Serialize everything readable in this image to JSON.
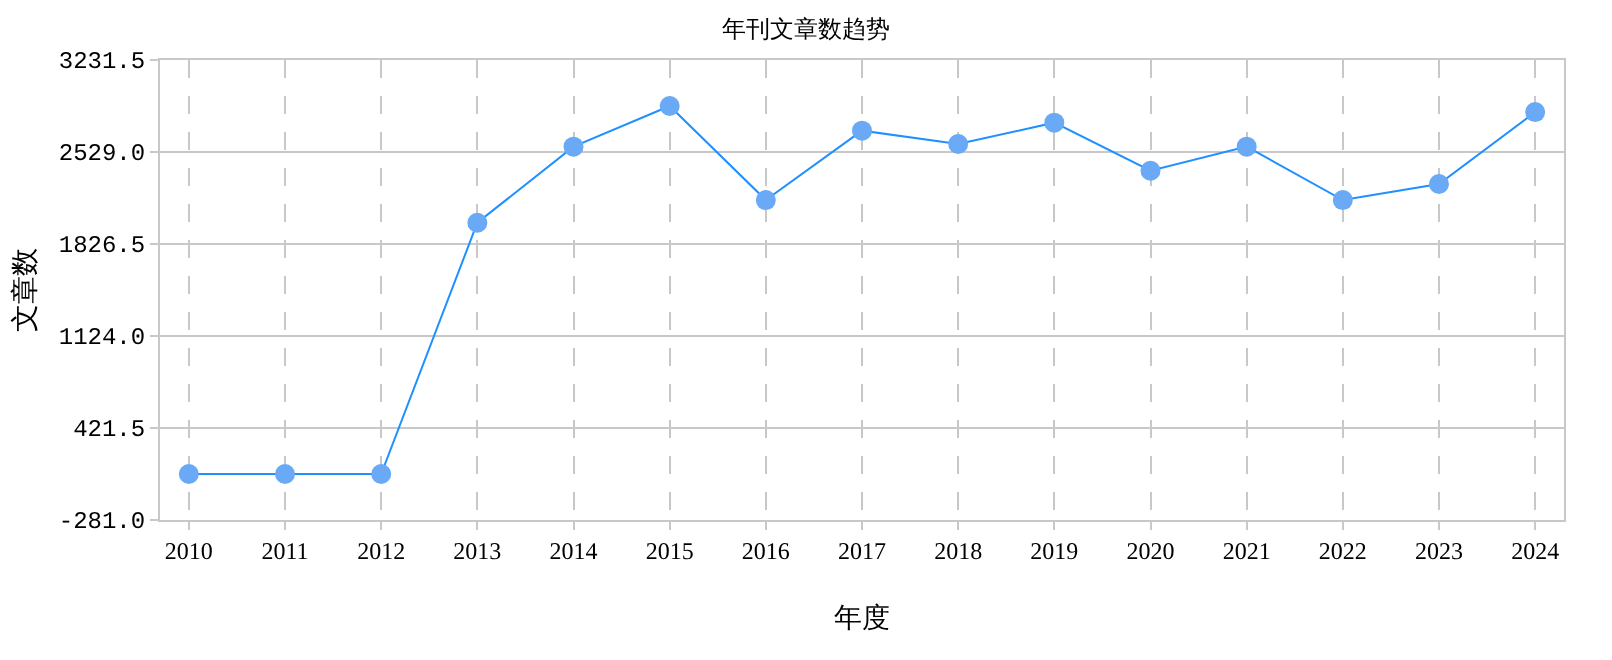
{
  "chart_data": {
    "type": "line",
    "title": "年刊文章数趋势",
    "xlabel": "年度",
    "ylabel": "文章数",
    "categories": [
      "2010",
      "2011",
      "2012",
      "2013",
      "2014",
      "2015",
      "2016",
      "2017",
      "2018",
      "2019",
      "2020",
      "2021",
      "2022",
      "2023",
      "2024"
    ],
    "series": [
      {
        "color": "#1e90ff",
        "values": [
          70,
          70,
          70,
          1989,
          2570,
          2880,
          2162,
          2692,
          2590,
          2753,
          2386,
          2570,
          2162,
          2285,
          2834
        ]
      }
    ],
    "ylim": [
      -281.0,
      3231.5
    ],
    "yticks": [
      {
        "value": -281.0,
        "label": "-281.0"
      },
      {
        "value": 421.5,
        "label": "421.5"
      },
      {
        "value": 1124.0,
        "label": "1124.0"
      },
      {
        "value": 1826.5,
        "label": "1826.5"
      },
      {
        "value": 2529.0,
        "label": "2529.0"
      },
      {
        "value": 3231.5,
        "label": "3231.5"
      }
    ],
    "grid": true,
    "marker": "circle",
    "line_style": "solid",
    "legend": false
  }
}
